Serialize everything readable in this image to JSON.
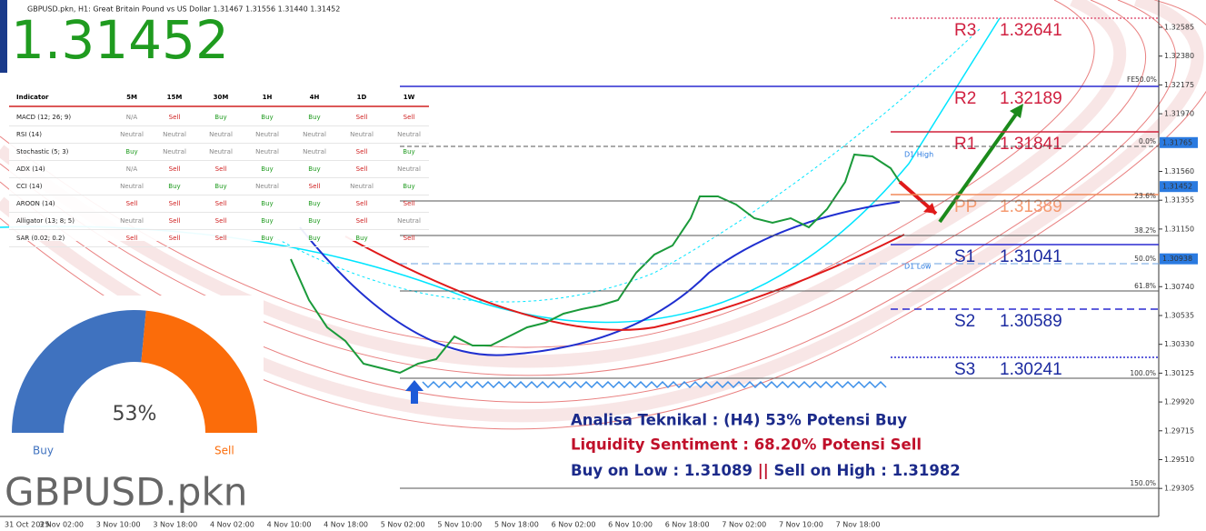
{
  "header": {
    "symbol_line": "GBPUSD.pkn, H1:  Great Britain Pound vs US Dollar  1.31467 1.31556 1.31440 1.31452",
    "price": "1.31452"
  },
  "table": {
    "columns": [
      "Indicator",
      "5M",
      "15M",
      "30M",
      "1H",
      "4H",
      "1D",
      "1W"
    ],
    "rows": [
      [
        "MACD (12; 26; 9)",
        "N/A",
        "Sell",
        "Buy",
        "Buy",
        "Buy",
        "Sell",
        "Sell"
      ],
      [
        "RSI (14)",
        "Neutral",
        "Neutral",
        "Neutral",
        "Neutral",
        "Neutral",
        "Neutral",
        "Neutral"
      ],
      [
        "Stochastic (5; 3)",
        "Buy",
        "Neutral",
        "Neutral",
        "Neutral",
        "Neutral",
        "Sell",
        "Buy"
      ],
      [
        "ADX (14)",
        "N/A",
        "Sell",
        "Sell",
        "Buy",
        "Buy",
        "Sell",
        "Neutral"
      ],
      [
        "CCI (14)",
        "Neutral",
        "Buy",
        "Buy",
        "Neutral",
        "Sell",
        "Neutral",
        "Buy"
      ],
      [
        "AROON (14)",
        "Sell",
        "Sell",
        "Sell",
        "Buy",
        "Buy",
        "Sell",
        "Sell"
      ],
      [
        "Alligator (13; 8; 5)",
        "Neutral",
        "Sell",
        "Sell",
        "Buy",
        "Buy",
        "Sell",
        "Neutral"
      ],
      [
        "SAR (0.02; 0.2)",
        "Sell",
        "Sell",
        "Sell",
        "Buy",
        "Buy",
        "Buy",
        "Sell"
      ]
    ]
  },
  "gauge": {
    "value": 53,
    "label": "53%",
    "left": "Buy",
    "right": "Sell"
  },
  "watermark": "GBPUSD.pkn",
  "levels": [
    {
      "name": "R3",
      "value": "1.32641"
    },
    {
      "name": "R2",
      "value": "1.32189"
    },
    {
      "name": "R1",
      "value": "1.31841"
    },
    {
      "name": "PP",
      "value": "1.31389"
    },
    {
      "name": "S1",
      "value": "1.31041"
    },
    {
      "name": "S2",
      "value": "1.30589"
    },
    {
      "name": "S3",
      "value": "1.30241"
    }
  ],
  "fib_labels": [
    "FE50.0%",
    "0.0%",
    "23.6%",
    "38.2%",
    "50.0%",
    "61.8%",
    "100.0%",
    "150.0%"
  ],
  "daily": {
    "high": "D1 High",
    "low": "D1 Low"
  },
  "price_axis": {
    "ticks": [
      "1.32585",
      "1.32380",
      "1.32175",
      "1.31970",
      "1.31560",
      "1.31355",
      "1.31150",
      "1.30740",
      "1.30535",
      "1.30330",
      "1.30125",
      "1.29920",
      "1.29715",
      "1.29510",
      "1.29305"
    ],
    "markers": [
      "1.31765",
      "1.31452",
      "1.30938"
    ]
  },
  "time_axis": [
    "31 Oct 2025",
    "3 Nov 02:00",
    "3 Nov 10:00",
    "3 Nov 18:00",
    "4 Nov 02:00",
    "4 Nov 10:00",
    "4 Nov 18:00",
    "5 Nov 02:00",
    "5 Nov 10:00",
    "5 Nov 18:00",
    "6 Nov 02:00",
    "6 Nov 10:00",
    "6 Nov 18:00",
    "7 Nov 02:00",
    "7 Nov 10:00",
    "7 Nov 18:00"
  ],
  "analysis": {
    "line1": "Analisa Teknikal      : (H4) 53% Potensi Buy",
    "line2": "Liquidity Sentiment :    68.20% Potensi Sell",
    "line3": {
      "buy": "Buy on Low : 1.31089",
      "sep": "||",
      "sell": "Sell on High : 1.31982"
    }
  }
}
